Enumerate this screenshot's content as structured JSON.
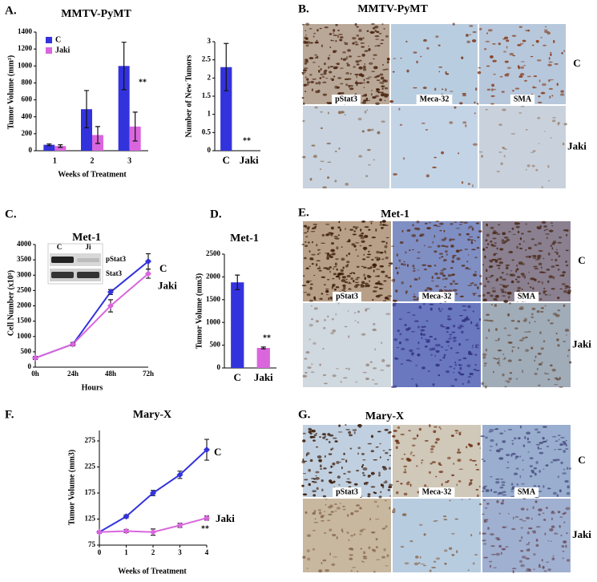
{
  "chart_data": [
    {
      "type": "bar",
      "panel_label": "A.",
      "title": "MMTV-PyMT",
      "y_label": "Tumor Volume (mm³)",
      "x_label": "Weeks of Treatment",
      "categories": [
        "1",
        "2",
        "3"
      ],
      "series": [
        {
          "name": "C",
          "color": "#3333dd",
          "values": [
            70,
            490,
            1000
          ],
          "errors": [
            10,
            220,
            280
          ]
        },
        {
          "name": "Jaki",
          "color": "#d966dd",
          "values": [
            55,
            185,
            285
          ],
          "errors": [
            15,
            100,
            170
          ]
        }
      ],
      "ylim": [
        0,
        1400
      ],
      "yticks": [
        0,
        200,
        400,
        600,
        800,
        1000,
        1200,
        1400
      ],
      "legend": "upper left",
      "annotation": "**"
    },
    {
      "type": "bar",
      "y_label": "Number of New Tumors",
      "categories": [
        "C",
        "Jaki"
      ],
      "values": [
        2.3,
        0
      ],
      "errors": [
        0.65,
        null
      ],
      "colors": [
        "#3333dd",
        "#d966dd"
      ],
      "ylim": [
        0,
        3
      ],
      "yticks": [
        0,
        0.5,
        1,
        1.5,
        2,
        2.5,
        3
      ],
      "annotation": "**"
    },
    {
      "type": "line",
      "panel_label": "C.",
      "title": "Met-1",
      "y_label": "Cell Number (x10³)",
      "x_label": "Hours",
      "categories": [
        "0h",
        "24h",
        "48h",
        "72h"
      ],
      "series": [
        {
          "name": "C",
          "color": "#3333dd",
          "values": [
            300,
            750,
            2450,
            3450
          ],
          "errors": [
            50,
            50,
            80,
            250
          ]
        },
        {
          "name": "Jaki",
          "color": "#d966dd",
          "values": [
            300,
            750,
            2000,
            3050
          ],
          "errors": [
            50,
            50,
            200,
            150
          ]
        }
      ],
      "ylim": [
        0,
        4000
      ],
      "yticks": [
        0,
        500,
        1000,
        1500,
        2000,
        2500,
        3000,
        3500,
        4000
      ],
      "inset": {
        "lanes": [
          "C",
          "Ji"
        ],
        "bands": [
          "pStat3",
          "Stat3"
        ]
      }
    },
    {
      "type": "bar",
      "panel_label": "D.",
      "title": "Met-1",
      "y_label": "Tumor Volume (mm3)",
      "categories": [
        "C",
        "Jaki"
      ],
      "values": [
        1880,
        440
      ],
      "errors": [
        160,
        20
      ],
      "colors": [
        "#3333dd",
        "#d966dd"
      ],
      "ylim": [
        0,
        2500
      ],
      "yticks": [
        0,
        500,
        1000,
        1500,
        2000,
        2500
      ],
      "annotation": "**"
    },
    {
      "type": "line",
      "panel_label": "F.",
      "title": "Mary-X",
      "y_label": "Tumor Volume (mm3)",
      "x_label": "Weeks of Treatment",
      "x": [
        0,
        1,
        2,
        3,
        4
      ],
      "xlim": [
        0,
        4
      ],
      "xticks": [
        0,
        1,
        2,
        3,
        4
      ],
      "series": [
        {
          "name": "C",
          "color": "#3333dd",
          "values": [
            100,
            130,
            175,
            210,
            258
          ],
          "errors": [
            2,
            3,
            5,
            7,
            20
          ]
        },
        {
          "name": "Jaki",
          "color": "#d966dd",
          "values": [
            100,
            102,
            100,
            113,
            127
          ],
          "errors": [
            2,
            3,
            6,
            4,
            4
          ]
        }
      ],
      "ylim": [
        75,
        295
      ],
      "yticks": [
        75,
        125,
        175,
        225,
        275
      ],
      "annotation": "**"
    }
  ],
  "image_panels": [
    {
      "label": "B.",
      "title": "MMTV-PyMT",
      "rows": [
        "C",
        "Jaki"
      ],
      "columns": [
        "pStat3",
        "Meca-32",
        "SMA"
      ]
    },
    {
      "label": "E.",
      "title": "Met-1",
      "rows": [
        "C",
        "Jaki"
      ],
      "columns": [
        "pStat3",
        "Meca-32",
        "SMA"
      ]
    },
    {
      "label": "G.",
      "title": "Mary-X",
      "rows": [
        "C",
        "Jaki"
      ],
      "columns": [
        "pStat3",
        "Meca-32",
        "SMA"
      ]
    }
  ]
}
